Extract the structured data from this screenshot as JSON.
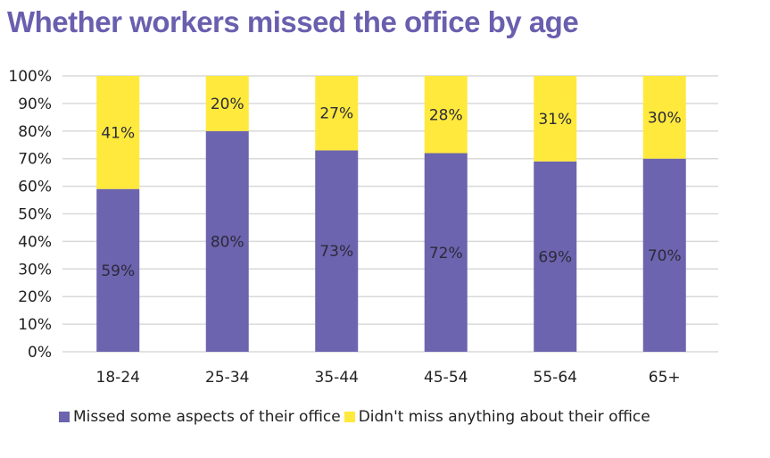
{
  "chart_data": {
    "type": "bar",
    "stacked": true,
    "title": "Whether workers missed the office by age",
    "categories": [
      "18-24",
      "25-34",
      "35-44",
      "45-54",
      "55-64",
      "65+"
    ],
    "series": [
      {
        "name": "Missed some aspects of their office",
        "color": "#6c64ae",
        "values": [
          59,
          80,
          73,
          72,
          69,
          70
        ],
        "labels": [
          "59%",
          "80%",
          "73%",
          "72%",
          "69%",
          "70%"
        ]
      },
      {
        "name": "Didn't miss anything about their office",
        "color": "#ffe93c",
        "values": [
          41,
          20,
          27,
          28,
          31,
          30
        ],
        "labels": [
          "41%",
          "20%",
          "27%",
          "28%",
          "31%",
          "30%"
        ]
      }
    ],
    "ylim": [
      0,
      100
    ],
    "yticks": [
      "0%",
      "10%",
      "20%",
      "30%",
      "40%",
      "50%",
      "60%",
      "70%",
      "80%",
      "90%",
      "100%"
    ],
    "grid": true,
    "legend": "bottom"
  }
}
